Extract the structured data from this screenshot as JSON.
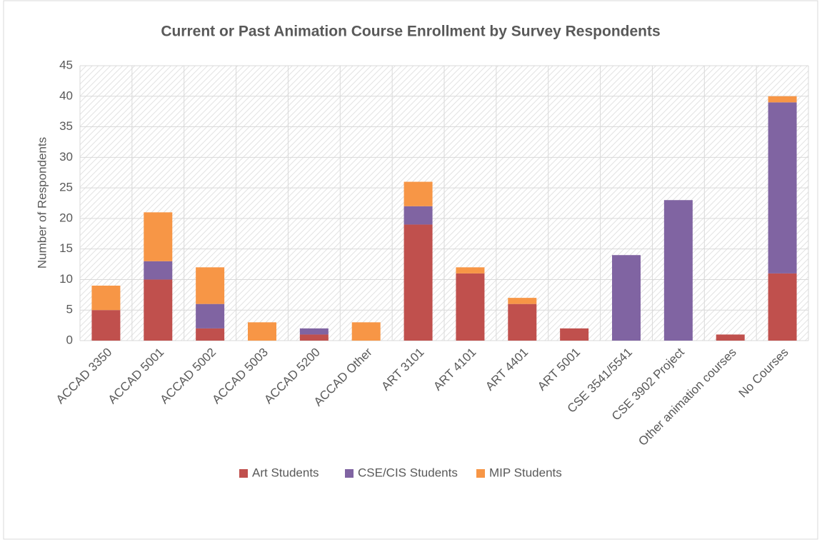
{
  "chart_data": {
    "type": "stacked_bar",
    "title": "Current or Past Animation Course Enrollment by Survey Respondents",
    "y_label": "Number of Respondents",
    "categories": [
      "ACCAD 3350",
      "ACCAD 5001",
      "ACCAD 5002",
      "ACCAD 5003",
      "ACCAD 5200",
      "ACCAD Other",
      "ART 3101",
      "ART 4101",
      "ART 4401",
      "ART 5001",
      "CSE 3541/5541",
      "CSE 3902 Project",
      "Other animation courses",
      "No Courses"
    ],
    "series": [
      {
        "name": "Art Students",
        "color": "#c0504d",
        "values": [
          5,
          10,
          2,
          0,
          1,
          0,
          19,
          11,
          6,
          2,
          0,
          0,
          1,
          11
        ]
      },
      {
        "name": "CSE/CIS Students",
        "color": "#8064a2",
        "values": [
          0,
          3,
          4,
          0,
          1,
          0,
          3,
          0,
          0,
          0,
          14,
          23,
          0,
          28
        ]
      },
      {
        "name": "MIP Students",
        "color": "#f79646",
        "values": [
          4,
          8,
          6,
          3,
          0,
          3,
          4,
          1,
          1,
          0,
          0,
          0,
          0,
          1
        ]
      }
    ],
    "ylim": [
      0,
      45
    ],
    "yticks": [
      0,
      5,
      10,
      15,
      20,
      25,
      30,
      35,
      40,
      45
    ],
    "grid": true,
    "legend": "bottom"
  }
}
